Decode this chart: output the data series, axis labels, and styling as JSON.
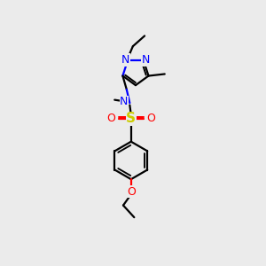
{
  "bg_color": "#ebebeb",
  "bond_color": "#000000",
  "N_color": "#0000ff",
  "O_color": "#ff0000",
  "S_color": "#cccc00",
  "line_width": 1.6,
  "figsize": [
    3.0,
    3.0
  ],
  "dpi": 100,
  "xlim": [
    0,
    10
  ],
  "ylim": [
    0,
    10
  ]
}
